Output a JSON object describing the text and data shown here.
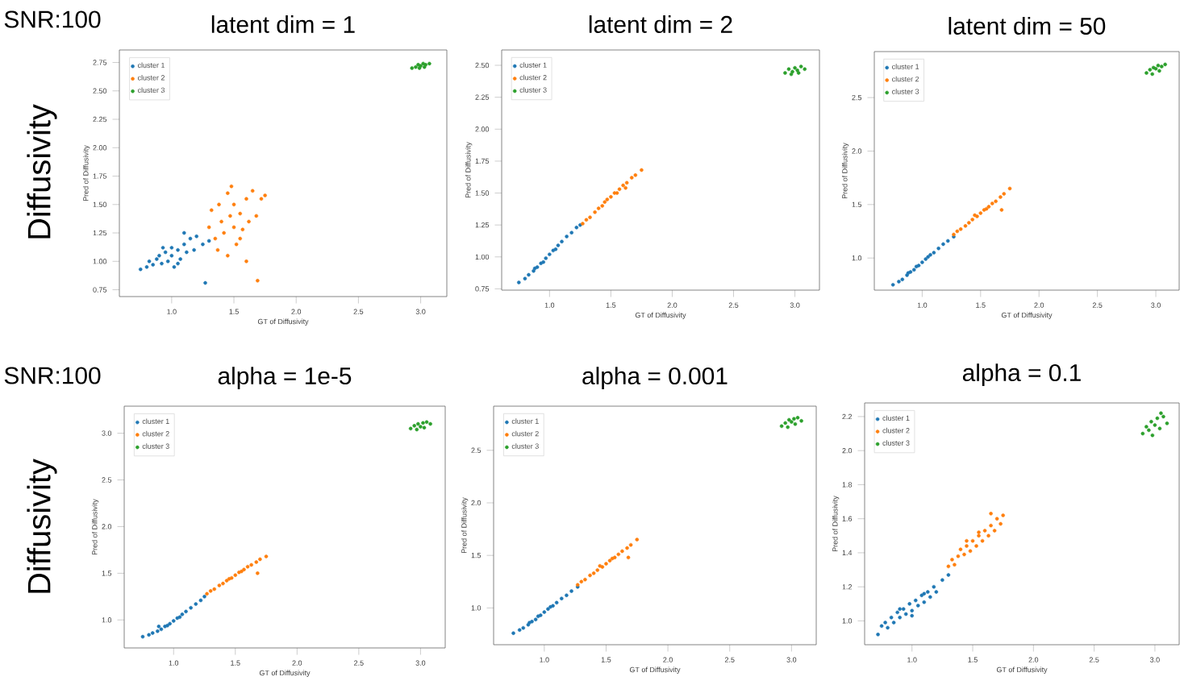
{
  "chart_data": [
    {
      "type": "scatter",
      "title": "latent dim = 1",
      "xlabel": "GT of Diffusivity",
      "ylabel": "Pred of Diffusivity",
      "annotations": [
        "SNR:100",
        "Diffusivity"
      ],
      "legend": "top left",
      "xlim": [
        0.58,
        3.21
      ],
      "ylim": [
        0.69,
        2.86
      ],
      "xticks": [
        {
          "value": 1.0,
          "label": "1.0"
        },
        {
          "value": 1.5,
          "label": "1.5"
        },
        {
          "value": 2.0,
          "label": "2.0"
        },
        {
          "value": 2.5,
          "label": "2.5"
        },
        {
          "value": 3.0,
          "label": "3.0"
        }
      ],
      "yticks": [
        {
          "value": 0.75,
          "label": "0.75"
        },
        {
          "value": 1.0,
          "label": "1.00"
        },
        {
          "value": 1.25,
          "label": "1.25"
        },
        {
          "value": 1.5,
          "label": "1.50"
        },
        {
          "value": 1.75,
          "label": "1.75"
        },
        {
          "value": 2.0,
          "label": "2.00"
        },
        {
          "value": 2.25,
          "label": "2.25"
        },
        {
          "value": 2.5,
          "label": "2.50"
        },
        {
          "value": 2.75,
          "label": "2.75"
        }
      ],
      "series": [
        {
          "name": "cluster 1",
          "color": "#1f77b4",
          "x": [
            0.75,
            0.8,
            0.82,
            0.85,
            0.88,
            0.9,
            0.92,
            0.95,
            0.97,
            1.0,
            1.0,
            1.02,
            1.05,
            1.07,
            1.1,
            1.12,
            1.15,
            1.18,
            1.2,
            1.25,
            1.3,
            0.93,
            1.05,
            1.1,
            1.27
          ],
          "values": [
            0.93,
            0.95,
            1.0,
            0.97,
            1.02,
            1.05,
            0.98,
            1.08,
            1.0,
            1.05,
            1.12,
            0.95,
            1.1,
            1.02,
            1.15,
            1.08,
            1.2,
            1.1,
            1.22,
            1.15,
            1.18,
            1.12,
            0.98,
            1.25,
            0.81
          ]
        },
        {
          "name": "cluster 2",
          "color": "#ff7f0e",
          "x": [
            1.3,
            1.32,
            1.35,
            1.38,
            1.4,
            1.42,
            1.45,
            1.47,
            1.5,
            1.5,
            1.52,
            1.55,
            1.57,
            1.6,
            1.62,
            1.65,
            1.68,
            1.72,
            1.75,
            1.37,
            1.45,
            1.55,
            1.6,
            1.48,
            1.69
          ],
          "values": [
            1.3,
            1.45,
            1.2,
            1.5,
            1.35,
            1.25,
            1.6,
            1.4,
            1.3,
            1.5,
            1.15,
            1.42,
            1.28,
            1.55,
            1.35,
            1.62,
            1.4,
            1.55,
            1.58,
            1.1,
            1.05,
            1.2,
            1.0,
            1.66,
            0.83
          ]
        },
        {
          "name": "cluster 3",
          "color": "#2ca02c",
          "x": [
            2.93,
            2.96,
            2.98,
            3.0,
            3.02,
            3.04,
            3.07,
            2.99,
            3.03
          ],
          "values": [
            2.7,
            2.71,
            2.73,
            2.72,
            2.74,
            2.73,
            2.74,
            2.7,
            2.71
          ]
        }
      ]
    },
    {
      "type": "scatter",
      "title": "latent dim = 2",
      "xlabel": "GT of Diffusivity",
      "ylabel": "Pred of Diffusivity",
      "legend": "top left",
      "xlim": [
        0.61,
        3.2
      ],
      "ylim": [
        0.74,
        2.62
      ],
      "xticks": [
        {
          "value": 1.0,
          "label": "1.0"
        },
        {
          "value": 1.5,
          "label": "1.5"
        },
        {
          "value": 2.0,
          "label": "2.0"
        },
        {
          "value": 2.5,
          "label": "2.5"
        },
        {
          "value": 3.0,
          "label": "3.0"
        }
      ],
      "yticks": [
        {
          "value": 0.75,
          "label": "0.75"
        },
        {
          "value": 1.0,
          "label": "1.00"
        },
        {
          "value": 1.25,
          "label": "1.25"
        },
        {
          "value": 1.5,
          "label": "1.50"
        },
        {
          "value": 1.75,
          "label": "1.75"
        },
        {
          "value": 2.0,
          "label": "2.00"
        },
        {
          "value": 2.25,
          "label": "2.25"
        },
        {
          "value": 2.5,
          "label": "2.50"
        }
      ],
      "series": [
        {
          "name": "cluster 1",
          "color": "#1f77b4",
          "x": [
            0.75,
            0.8,
            0.83,
            0.87,
            0.9,
            0.93,
            0.97,
            1.0,
            1.03,
            1.07,
            1.1,
            1.14,
            1.18,
            1.22,
            1.25,
            0.88,
            0.95,
            1.05
          ],
          "values": [
            0.8,
            0.83,
            0.86,
            0.89,
            0.92,
            0.95,
            0.99,
            1.02,
            1.05,
            1.09,
            1.12,
            1.16,
            1.19,
            1.23,
            1.25,
            0.91,
            0.96,
            1.06
          ]
        },
        {
          "name": "cluster 2",
          "color": "#ff7f0e",
          "x": [
            1.27,
            1.3,
            1.33,
            1.37,
            1.4,
            1.43,
            1.47,
            1.5,
            1.53,
            1.57,
            1.6,
            1.63,
            1.67,
            1.7,
            1.75,
            1.45,
            1.55,
            1.62
          ],
          "values": [
            1.26,
            1.29,
            1.31,
            1.35,
            1.38,
            1.4,
            1.45,
            1.47,
            1.5,
            1.53,
            1.56,
            1.58,
            1.62,
            1.64,
            1.68,
            1.43,
            1.5,
            1.54
          ]
        },
        {
          "name": "cluster 3",
          "color": "#2ca02c",
          "x": [
            2.92,
            2.95,
            2.98,
            3.0,
            3.02,
            3.05,
            3.08,
            2.97,
            3.03
          ],
          "values": [
            2.44,
            2.47,
            2.45,
            2.48,
            2.46,
            2.49,
            2.47,
            2.43,
            2.44
          ]
        }
      ]
    },
    {
      "type": "scatter",
      "title": "latent dim = 50",
      "xlabel": "GT of Diffusivity",
      "ylabel": "Pred of Diffusivity",
      "legend": "top left",
      "xlim": [
        0.59,
        3.2
      ],
      "ylim": [
        0.7,
        2.93
      ],
      "xticks": [
        {
          "value": 1.0,
          "label": "1.0"
        },
        {
          "value": 1.5,
          "label": "1.5"
        },
        {
          "value": 2.0,
          "label": "2.0"
        },
        {
          "value": 2.5,
          "label": "2.5"
        },
        {
          "value": 3.0,
          "label": "3.0"
        }
      ],
      "yticks": [
        {
          "value": 1.0,
          "label": "1.0"
        },
        {
          "value": 1.5,
          "label": "1.5"
        },
        {
          "value": 2.0,
          "label": "2.0"
        },
        {
          "value": 2.5,
          "label": "2.5"
        }
      ],
      "series": [
        {
          "name": "cluster 1",
          "color": "#1f77b4",
          "x": [
            0.75,
            0.8,
            0.83,
            0.87,
            0.9,
            0.93,
            0.97,
            1.0,
            1.03,
            1.07,
            1.1,
            1.14,
            1.18,
            1.22,
            1.27,
            0.88,
            0.95,
            1.05
          ],
          "values": [
            0.75,
            0.78,
            0.8,
            0.84,
            0.87,
            0.89,
            0.93,
            0.96,
            0.99,
            1.03,
            1.05,
            1.09,
            1.13,
            1.16,
            1.2,
            0.86,
            0.92,
            1.01
          ]
        },
        {
          "name": "cluster 2",
          "color": "#ff7f0e",
          "x": [
            1.27,
            1.3,
            1.33,
            1.37,
            1.4,
            1.43,
            1.47,
            1.5,
            1.53,
            1.57,
            1.6,
            1.63,
            1.67,
            1.7,
            1.75,
            1.45,
            1.55,
            1.68
          ],
          "values": [
            1.22,
            1.25,
            1.27,
            1.3,
            1.33,
            1.36,
            1.39,
            1.42,
            1.45,
            1.48,
            1.51,
            1.53,
            1.57,
            1.6,
            1.65,
            1.4,
            1.46,
            1.45
          ]
        },
        {
          "name": "cluster 3",
          "color": "#2ca02c",
          "x": [
            2.92,
            2.95,
            2.98,
            3.0,
            3.02,
            3.05,
            3.08,
            2.97,
            3.03
          ],
          "values": [
            2.73,
            2.76,
            2.78,
            2.77,
            2.8,
            2.79,
            2.81,
            2.72,
            2.75
          ]
        }
      ]
    },
    {
      "type": "scatter",
      "title": "alpha = 1e-5",
      "xlabel": "GT of Diffusivity",
      "ylabel": "Pred of Diffusivity",
      "annotations": [
        "SNR:100",
        "Diffusivity"
      ],
      "legend": "top left",
      "xlim": [
        0.6,
        3.2
      ],
      "ylim": [
        0.7,
        3.29
      ],
      "xticks": [
        {
          "value": 1.0,
          "label": "1.0"
        },
        {
          "value": 1.5,
          "label": "1.5"
        },
        {
          "value": 2.0,
          "label": "2.0"
        },
        {
          "value": 2.5,
          "label": "2.5"
        },
        {
          "value": 3.0,
          "label": "3.0"
        }
      ],
      "yticks": [
        {
          "value": 1.0,
          "label": "1.0"
        },
        {
          "value": 1.5,
          "label": "1.5"
        },
        {
          "value": 2.0,
          "label": "2.0"
        },
        {
          "value": 2.5,
          "label": "2.5"
        },
        {
          "value": 3.0,
          "label": "3.0"
        }
      ],
      "series": [
        {
          "name": "cluster 1",
          "color": "#1f77b4",
          "x": [
            0.75,
            0.8,
            0.83,
            0.87,
            0.9,
            0.93,
            0.97,
            1.0,
            1.03,
            1.07,
            1.1,
            1.14,
            1.18,
            1.22,
            1.25,
            0.88,
            0.95,
            1.05
          ],
          "values": [
            0.82,
            0.84,
            0.86,
            0.88,
            0.9,
            0.93,
            0.96,
            0.99,
            1.02,
            1.06,
            1.09,
            1.13,
            1.17,
            1.21,
            1.25,
            0.93,
            0.94,
            1.03
          ]
        },
        {
          "name": "cluster 2",
          "color": "#ff7f0e",
          "x": [
            1.27,
            1.3,
            1.33,
            1.37,
            1.4,
            1.43,
            1.47,
            1.5,
            1.53,
            1.57,
            1.6,
            1.63,
            1.67,
            1.7,
            1.75,
            1.45,
            1.55,
            1.68
          ],
          "values": [
            1.28,
            1.31,
            1.33,
            1.37,
            1.39,
            1.42,
            1.45,
            1.48,
            1.51,
            1.54,
            1.57,
            1.59,
            1.62,
            1.65,
            1.68,
            1.44,
            1.52,
            1.5
          ]
        },
        {
          "name": "cluster 3",
          "color": "#2ca02c",
          "x": [
            2.92,
            2.95,
            2.98,
            3.0,
            3.02,
            3.05,
            3.08,
            2.97,
            3.03
          ],
          "values": [
            3.05,
            3.08,
            3.1,
            3.07,
            3.11,
            3.12,
            3.1,
            3.04,
            3.06
          ]
        }
      ]
    },
    {
      "type": "scatter",
      "title": "alpha = 0.001",
      "xlabel": "GT of Diffusivity",
      "ylabel": "Pred of Diffusivity",
      "legend": "top left",
      "xlim": [
        0.59,
        3.2
      ],
      "ylim": [
        0.65,
        2.92
      ],
      "xticks": [
        {
          "value": 1.0,
          "label": "1.0"
        },
        {
          "value": 1.5,
          "label": "1.5"
        },
        {
          "value": 2.0,
          "label": "2.0"
        },
        {
          "value": 2.5,
          "label": "2.5"
        },
        {
          "value": 3.0,
          "label": "3.0"
        }
      ],
      "yticks": [
        {
          "value": 1.0,
          "label": "1.0"
        },
        {
          "value": 1.5,
          "label": "1.5"
        },
        {
          "value": 2.0,
          "label": "2.0"
        },
        {
          "value": 2.5,
          "label": "2.5"
        }
      ],
      "series": [
        {
          "name": "cluster 1",
          "color": "#1f77b4",
          "x": [
            0.75,
            0.8,
            0.83,
            0.87,
            0.9,
            0.93,
            0.97,
            1.0,
            1.03,
            1.07,
            1.1,
            1.14,
            1.18,
            1.22,
            1.27,
            0.88,
            0.95,
            1.05
          ],
          "values": [
            0.76,
            0.79,
            0.81,
            0.84,
            0.87,
            0.89,
            0.93,
            0.96,
            0.99,
            1.02,
            1.05,
            1.09,
            1.12,
            1.16,
            1.2,
            0.86,
            0.92,
            1.01
          ]
        },
        {
          "name": "cluster 2",
          "color": "#ff7f0e",
          "x": [
            1.27,
            1.3,
            1.33,
            1.37,
            1.4,
            1.43,
            1.47,
            1.5,
            1.53,
            1.57,
            1.6,
            1.63,
            1.67,
            1.7,
            1.75,
            1.45,
            1.55,
            1.68
          ],
          "values": [
            1.22,
            1.25,
            1.27,
            1.31,
            1.33,
            1.36,
            1.39,
            1.42,
            1.45,
            1.48,
            1.51,
            1.54,
            1.57,
            1.6,
            1.65,
            1.4,
            1.47,
            1.48
          ]
        },
        {
          "name": "cluster 3",
          "color": "#2ca02c",
          "x": [
            2.92,
            2.95,
            2.98,
            3.0,
            3.02,
            3.05,
            3.08,
            2.97,
            3.03
          ],
          "values": [
            2.73,
            2.76,
            2.79,
            2.77,
            2.8,
            2.81,
            2.78,
            2.72,
            2.75
          ]
        }
      ]
    },
    {
      "type": "scatter",
      "title": "alpha = 0.1",
      "xlabel": "GT of Diffusivity",
      "ylabel": "Pred of Diffusivity",
      "legend": "top left",
      "xlim": [
        0.61,
        3.2
      ],
      "ylim": [
        0.86,
        2.28
      ],
      "xticks": [
        {
          "value": 1.0,
          "label": "1.0"
        },
        {
          "value": 1.5,
          "label": "1.5"
        },
        {
          "value": 2.0,
          "label": "2.0"
        },
        {
          "value": 2.5,
          "label": "2.5"
        },
        {
          "value": 3.0,
          "label": "3.0"
        }
      ],
      "yticks": [
        {
          "value": 1.0,
          "label": "1.0"
        },
        {
          "value": 1.2,
          "label": "1.2"
        },
        {
          "value": 1.4,
          "label": "1.4"
        },
        {
          "value": 1.6,
          "label": "1.6"
        },
        {
          "value": 1.8,
          "label": "1.8"
        },
        {
          "value": 2.0,
          "label": "2.0"
        },
        {
          "value": 2.2,
          "label": "2.2"
        }
      ],
      "series": [
        {
          "name": "cluster 1",
          "color": "#1f77b4",
          "x": [
            0.72,
            0.75,
            0.78,
            0.8,
            0.83,
            0.85,
            0.88,
            0.9,
            0.93,
            0.95,
            0.98,
            1.0,
            1.03,
            1.05,
            1.08,
            1.1,
            1.13,
            1.15,
            1.18,
            1.2,
            1.25,
            1.3,
            0.9,
            1.0,
            1.1
          ],
          "values": [
            0.92,
            0.97,
            0.99,
            0.96,
            1.02,
            0.99,
            1.05,
            1.02,
            1.07,
            1.04,
            1.1,
            1.06,
            1.12,
            1.09,
            1.15,
            1.11,
            1.17,
            1.14,
            1.2,
            1.17,
            1.24,
            1.27,
            1.07,
            1.03,
            1.16
          ]
        },
        {
          "name": "cluster 2",
          "color": "#ff7f0e",
          "x": [
            1.3,
            1.33,
            1.35,
            1.38,
            1.4,
            1.43,
            1.45,
            1.48,
            1.5,
            1.53,
            1.55,
            1.58,
            1.6,
            1.63,
            1.65,
            1.68,
            1.7,
            1.73,
            1.75,
            1.45,
            1.55,
            1.65
          ],
          "values": [
            1.32,
            1.36,
            1.33,
            1.38,
            1.42,
            1.39,
            1.44,
            1.41,
            1.47,
            1.44,
            1.5,
            1.47,
            1.53,
            1.5,
            1.56,
            1.53,
            1.6,
            1.57,
            1.62,
            1.47,
            1.52,
            1.63
          ]
        },
        {
          "name": "cluster 3",
          "color": "#2ca02c",
          "x": [
            2.9,
            2.93,
            2.95,
            2.97,
            3.0,
            3.02,
            3.04,
            3.07,
            3.1,
            2.98,
            3.05
          ],
          "values": [
            2.1,
            2.14,
            2.12,
            2.17,
            2.15,
            2.19,
            2.13,
            2.2,
            2.16,
            2.09,
            2.22
          ]
        }
      ]
    }
  ]
}
